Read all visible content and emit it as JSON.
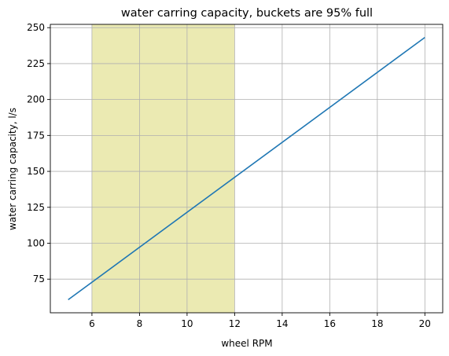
{
  "chart_data": {
    "type": "line",
    "title": "water carring capacity, buckets are 95% full",
    "xlabel": "wheel RPM",
    "ylabel": "water carring capacity, l/s",
    "xlim": [
      4.25,
      20.75
    ],
    "ylim": [
      51.6,
      252.3
    ],
    "xticks": [
      6,
      8,
      10,
      12,
      14,
      16,
      18,
      20
    ],
    "yticks": [
      75,
      100,
      125,
      150,
      175,
      200,
      225,
      250
    ],
    "grid": true,
    "shaded_region": {
      "x": [
        6,
        12
      ],
      "color": "#ebeab2"
    },
    "series": [
      {
        "color": "#1f77b4",
        "x": [
          5,
          20
        ],
        "y": [
          60.7,
          243.2
        ]
      }
    ]
  }
}
